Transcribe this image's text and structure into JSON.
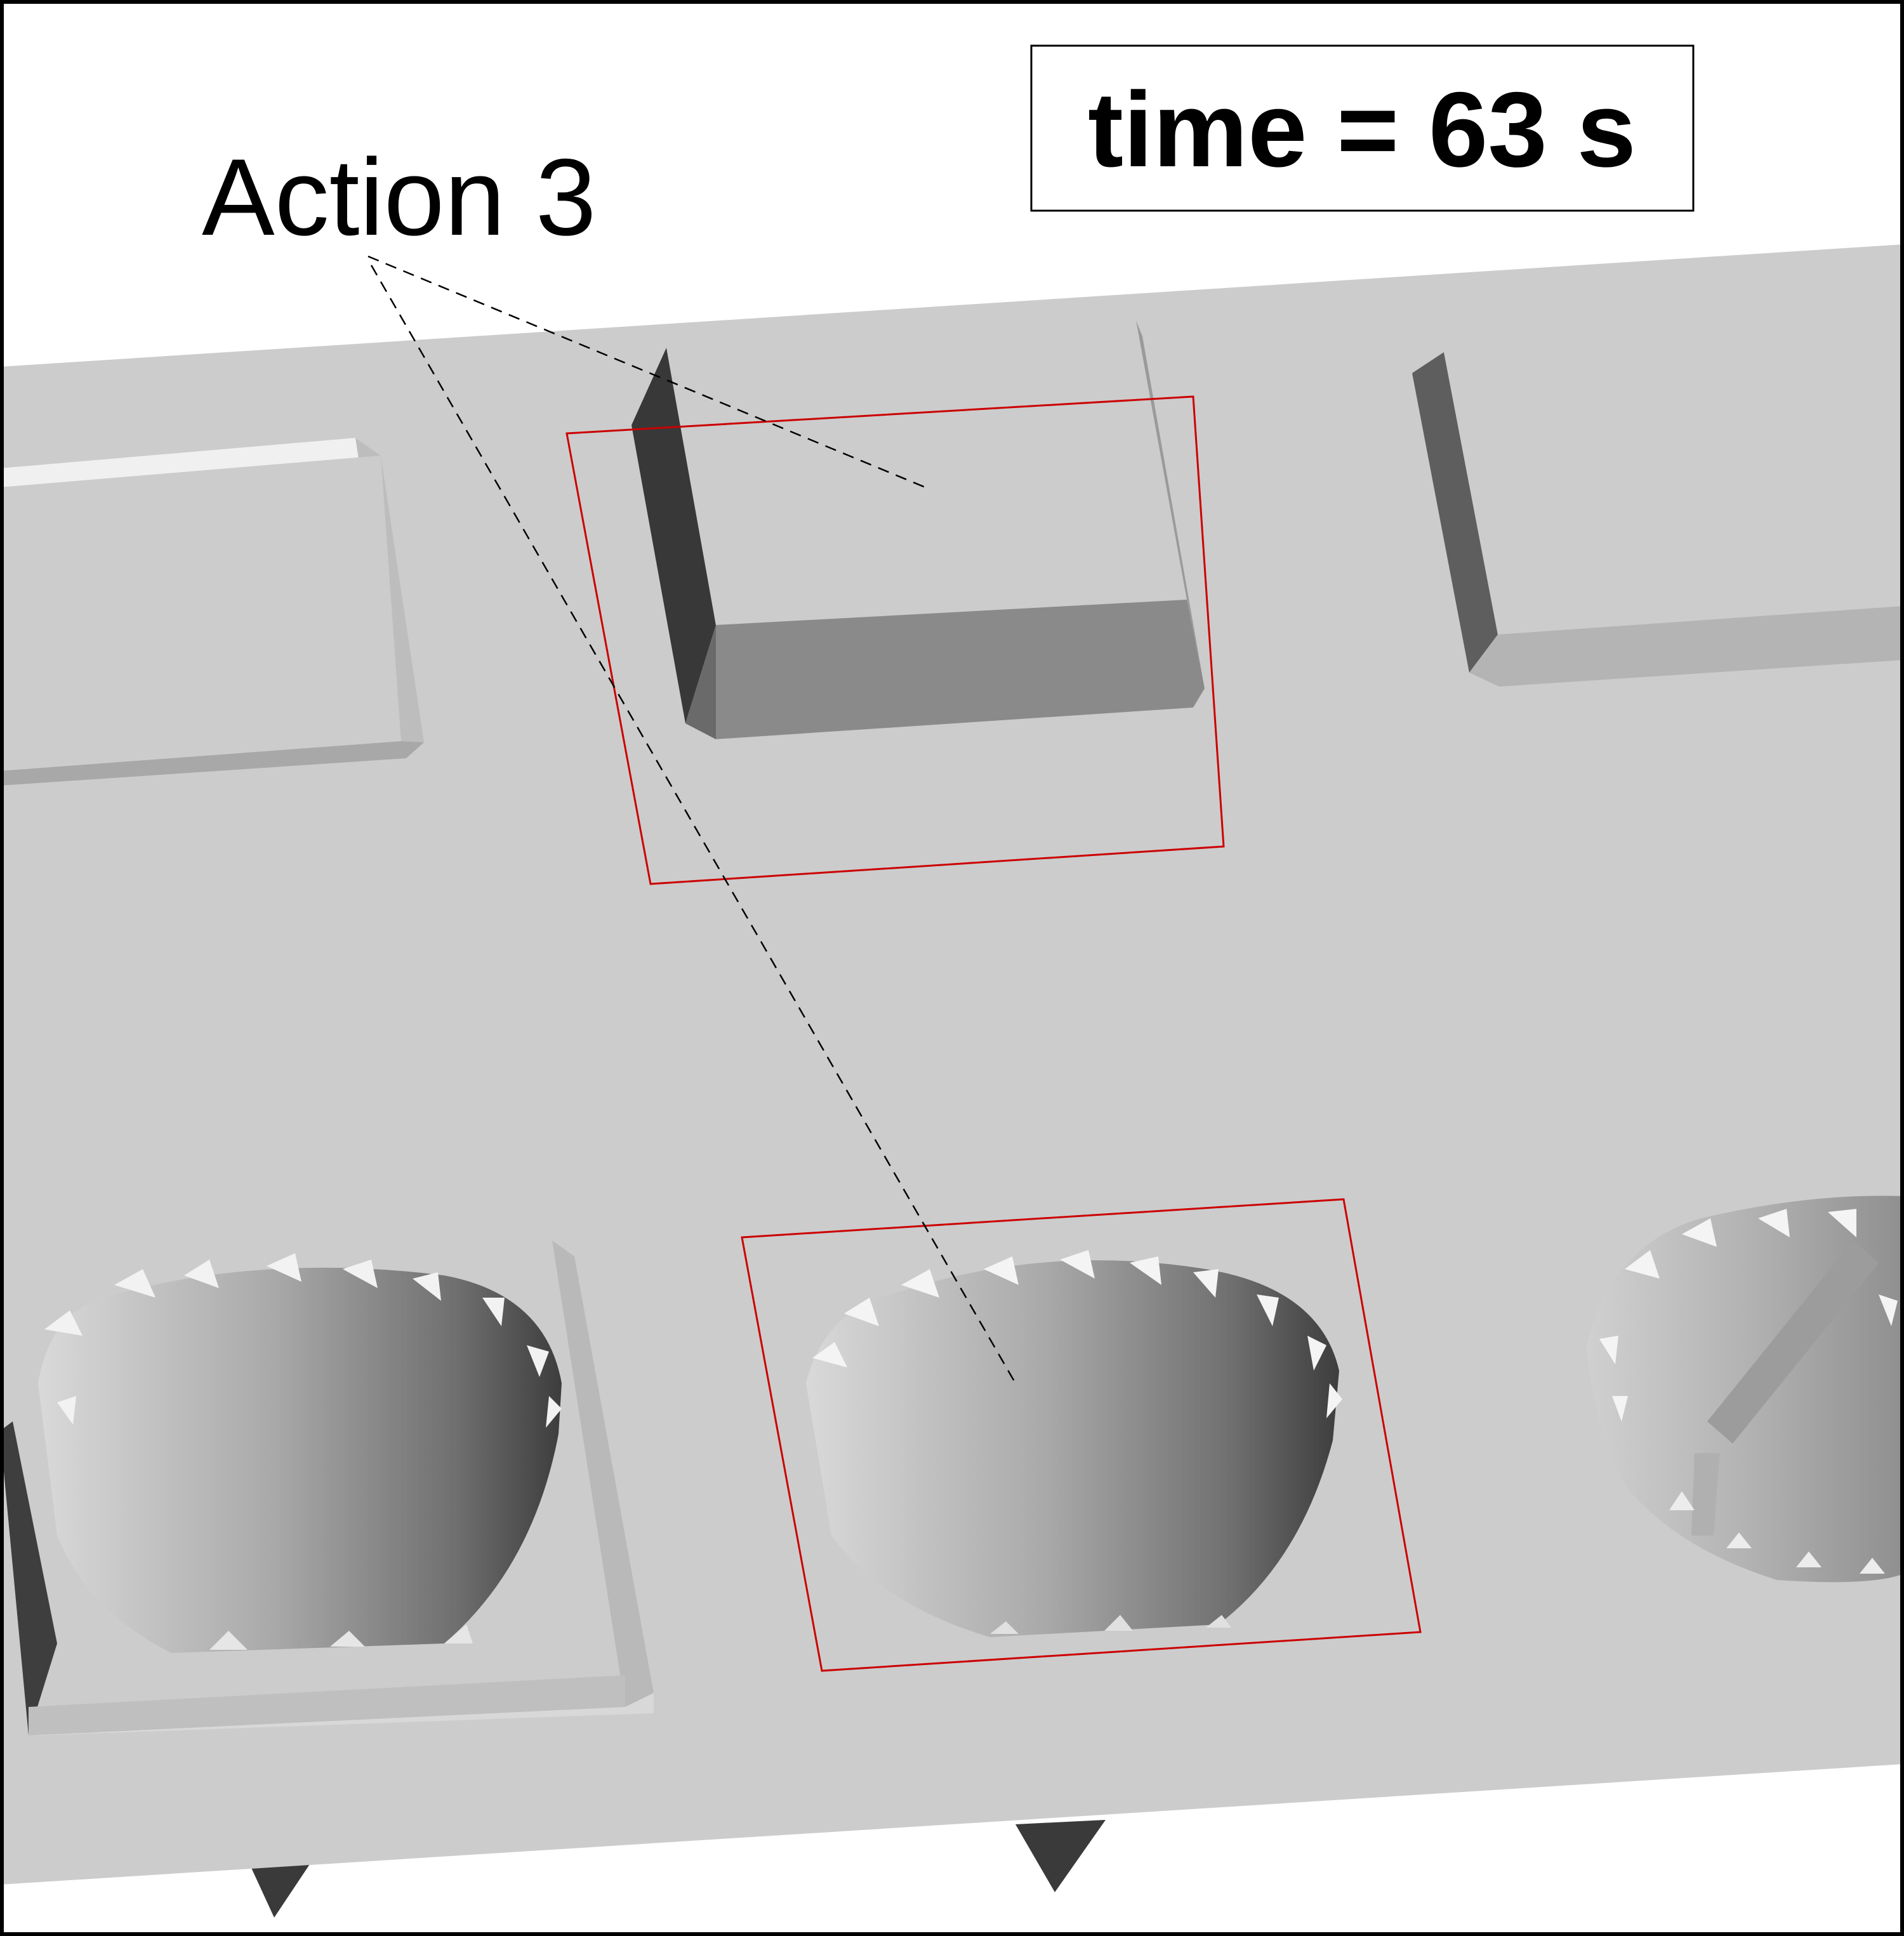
{
  "annotation": {
    "action_label": "Action 3"
  },
  "time_box": {
    "text": "time = 63 s"
  },
  "colors": {
    "background": "#ffffff",
    "frame": "#000000",
    "plate_top": "#cccccc",
    "highlight_box": "#cc0000",
    "leader_line": "#000000",
    "dark_face": "#383838",
    "mid_face": "#8a8a8a",
    "light_face": "#e2e2e2"
  }
}
